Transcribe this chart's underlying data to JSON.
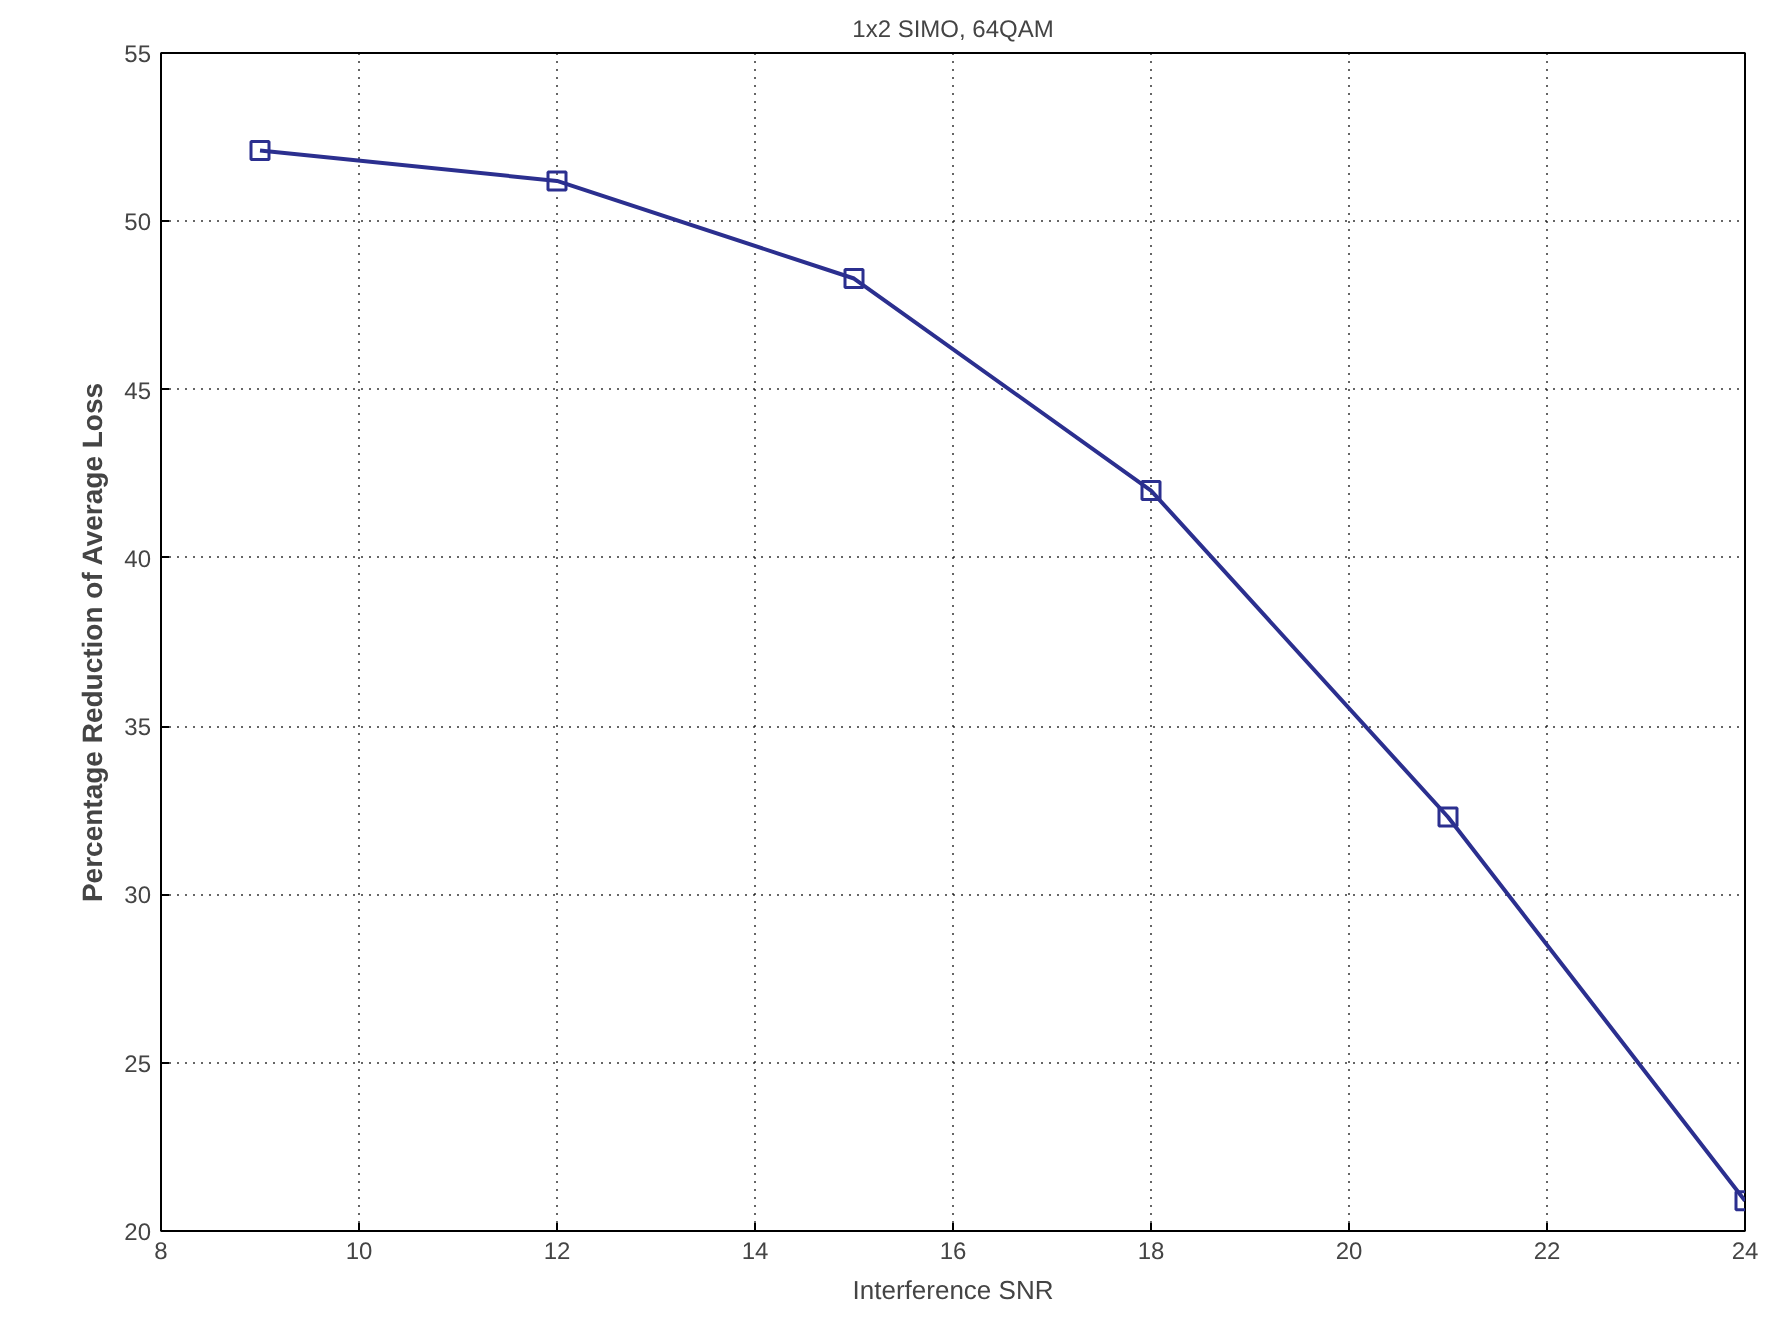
{
  "chart_data": {
    "type": "line",
    "title": "1x2 SIMO, 64QAM",
    "xlabel": "Interference SNR",
    "ylabel": "Percentage Reduction of Average Loss",
    "x": [
      9,
      12,
      15,
      18,
      21,
      24
    ],
    "series": [
      {
        "color": "#2b2f8f",
        "values": [
          52.1,
          51.2,
          48.3,
          42.0,
          32.3,
          20.9
        ]
      }
    ],
    "xlim": [
      8,
      24
    ],
    "xticks": [
      8,
      10,
      12,
      14,
      16,
      18,
      20,
      22,
      24
    ],
    "ylim": [
      20,
      55
    ],
    "yticks": [
      20,
      25,
      30,
      35,
      40,
      45,
      50,
      55
    ],
    "grid": true,
    "marker": "square",
    "line_style": "solid"
  }
}
